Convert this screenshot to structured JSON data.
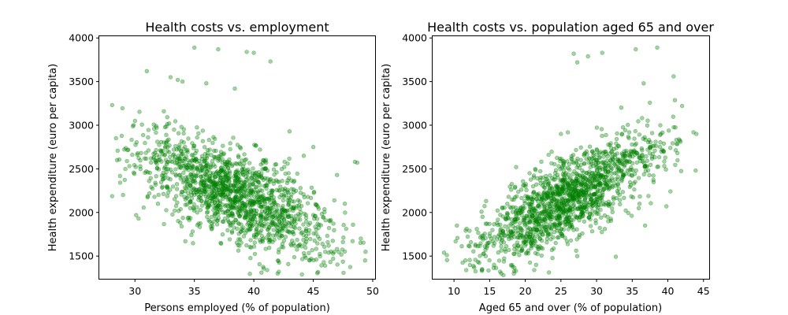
{
  "chart_data": [
    {
      "type": "scatter",
      "title": "Health costs vs. employment",
      "xlabel": "Persons employed (% of population)",
      "ylabel": "Health expenditure (euro per capita)",
      "xlim": [
        27.0,
        50.2
      ],
      "ylim": [
        1240,
        4020
      ],
      "xticks": [
        30,
        35,
        40,
        45,
        50
      ],
      "yticks": [
        1500,
        2000,
        2500,
        3000,
        3500,
        4000
      ],
      "grid": false,
      "point_color": "#008000",
      "point_alpha": 0.35,
      "trend": {
        "x_center": 38.5,
        "y_center": 2200,
        "slope": -58,
        "x_spread": 4.2,
        "noise_sd": 260,
        "x_range": [
          28,
          49.5
        ],
        "count": 1500
      },
      "series": [
        {
          "values": [
            [
              35.0,
              3890
            ],
            [
              37.0,
              3870
            ],
            [
              39.4,
              3840
            ],
            [
              40.0,
              3830
            ],
            [
              41.4,
              3730
            ],
            [
              31.0,
              3620
            ],
            [
              33.0,
              3550
            ],
            [
              34.0,
              3500
            ],
            [
              33.6,
              3520
            ],
            [
              36.0,
              3480
            ],
            [
              28.5,
              2600
            ],
            [
              29.0,
              2200
            ],
            [
              30.0,
              3050
            ],
            [
              42.0,
              1300
            ],
            [
              42.1,
              1320
            ],
            [
              47.0,
              2430
            ],
            [
              48.5,
              2580
            ],
            [
              48.7,
              2570
            ],
            [
              45.0,
              2750
            ],
            [
              44.2,
              2650
            ],
            [
              46.0,
              1390
            ],
            [
              49.0,
              1700
            ],
            [
              49.4,
              1550
            ],
            [
              43.0,
              2930
            ],
            [
              38.4,
              3420
            ]
          ]
        }
      ]
    },
    {
      "type": "scatter",
      "title": "Health costs vs. population aged 65 and over",
      "xlabel": "Aged 65 and over (% of population)",
      "ylabel": "Health expenditure (euro per capita)",
      "xlim": [
        7.0,
        45.8
      ],
      "ylim": [
        1240,
        4020
      ],
      "xticks": [
        10,
        15,
        20,
        25,
        30,
        35,
        40,
        45
      ],
      "yticks": [
        1500,
        2000,
        2500,
        3000,
        3500,
        4000
      ],
      "grid": false,
      "point_color": "#008000",
      "point_alpha": 0.35,
      "trend": {
        "x_center": 26,
        "y_center": 2150,
        "slope": 45,
        "x_spread": 6.2,
        "noise_sd": 240,
        "x_range": [
          8.5,
          44
        ],
        "count": 1500
      },
      "series": [
        {
          "values": [
            [
              26.8,
              3820
            ],
            [
              28.8,
              3790
            ],
            [
              30.8,
              3830
            ],
            [
              35.5,
              3870
            ],
            [
              38.5,
              3890
            ],
            [
              27.3,
              3720
            ],
            [
              9.0,
              1510
            ],
            [
              8.6,
              1540
            ],
            [
              10.4,
              1850
            ],
            [
              11.6,
              1450
            ],
            [
              18.4,
              1300
            ],
            [
              18.7,
              1330
            ],
            [
              27.3,
              1500
            ],
            [
              36.8,
              1850
            ],
            [
              39.8,
              2070
            ],
            [
              43.6,
              2920
            ],
            [
              43.9,
              2480
            ],
            [
              42.0,
              3220
            ],
            [
              40.8,
              3560
            ],
            [
              36.6,
              3480
            ],
            [
              13.2,
              1810
            ],
            [
              14.0,
              1950
            ],
            [
              44.0,
              2900
            ],
            [
              20.6,
              2450
            ],
            [
              25.0,
              2900
            ]
          ]
        }
      ]
    }
  ]
}
